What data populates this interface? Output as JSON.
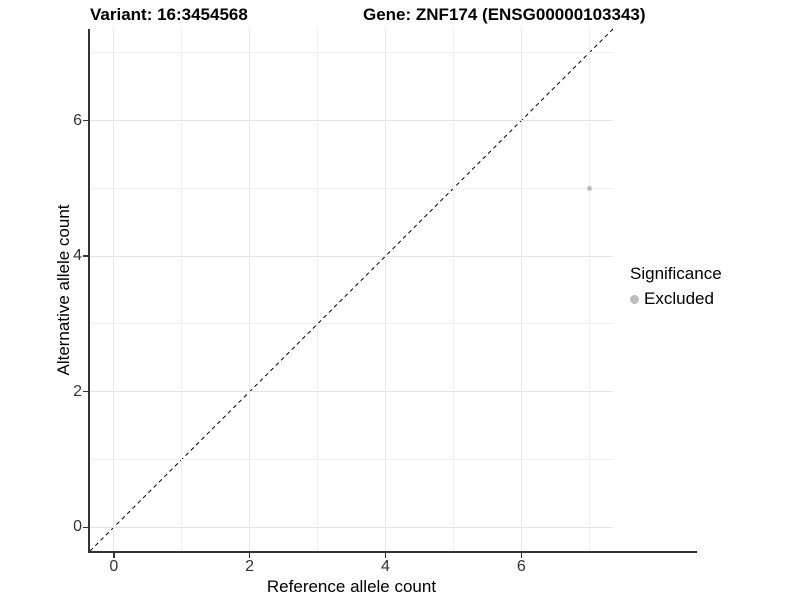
{
  "figure": {
    "title_left": "Variant: 16:3454568",
    "title_right": "Gene: ZNF174 (ENSG00000103343)"
  },
  "chart_data": {
    "type": "scatter",
    "title": "Variant: 16:3454568   Gene: ZNF174 (ENSG00000103343)",
    "xlabel": "Reference allele count",
    "ylabel": "Alternative allele count",
    "xlim": [
      -0.35,
      7.35
    ],
    "ylim": [
      -0.35,
      7.35
    ],
    "x_major_ticks": [
      0,
      2,
      4,
      6
    ],
    "y_major_ticks": [
      0,
      2,
      4,
      6
    ],
    "x_minor_ticks": [
      1,
      3,
      5,
      7
    ],
    "y_minor_ticks": [
      1,
      3,
      5,
      7
    ],
    "grid": true,
    "reference_line": {
      "type": "identity",
      "style": "dashed",
      "color": "#000000"
    },
    "series": [
      {
        "name": "Excluded",
        "color": "#bcbcbc",
        "points": [
          {
            "x": 7,
            "y": 5
          }
        ]
      }
    ],
    "legend": {
      "title": "Significance",
      "position": "right",
      "items": [
        {
          "label": "Excluded",
          "color": "#bcbcbc"
        }
      ]
    }
  },
  "colors": {
    "background": "#ffffff",
    "axis_line": "#333333",
    "tick_label": "#333333",
    "grid_major": "#e4e4e4",
    "grid_minor": "#efefef",
    "point": "#bcbcbc"
  }
}
